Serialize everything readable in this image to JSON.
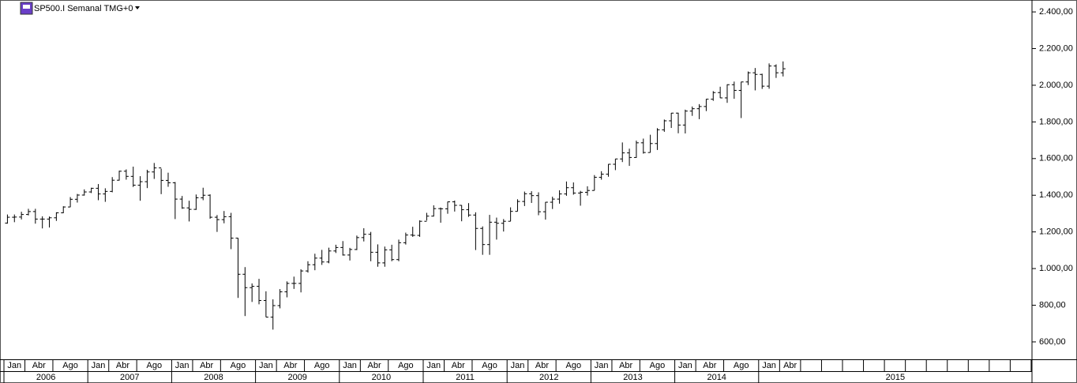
{
  "chart_data": {
    "type": "ohlc",
    "title": "SP500.I Semanal TMG+0",
    "color": "#000000",
    "categories": [
      "Jan",
      null,
      null,
      "Abr",
      null,
      null,
      null,
      "Ago",
      null,
      null,
      null,
      null,
      "Jan",
      null,
      null,
      "Abr",
      null,
      null,
      null,
      "Ago",
      null,
      null,
      null,
      null,
      "Jan",
      null,
      null,
      "Abr",
      null,
      null,
      null,
      "Ago",
      null,
      null,
      null,
      null,
      "Jan",
      null,
      null,
      "Abr",
      null,
      null,
      null,
      "Ago",
      null,
      null,
      null,
      null,
      "Jan",
      null,
      null,
      "Abr",
      null,
      null,
      null,
      "Ago",
      null,
      null,
      null,
      null,
      "Jan",
      null,
      null,
      "Abr",
      null,
      null,
      null,
      "Ago",
      null,
      null,
      null,
      null,
      "Jan",
      null,
      null,
      "Abr",
      null,
      null,
      null,
      "Ago",
      null,
      null,
      null,
      null,
      "Jan",
      null,
      null,
      "Abr",
      null,
      null,
      null,
      "Ago",
      null,
      null,
      null,
      null,
      "Jan",
      null,
      null,
      "Abr",
      null,
      null,
      null,
      "Ago",
      null,
      null,
      null,
      null,
      "Jan",
      null,
      null,
      "Abr"
    ],
    "years": [
      "2006",
      "2007",
      "2008",
      "2009",
      "2010",
      "2011",
      "2012",
      "2013",
      "2014",
      "2015"
    ],
    "open": [
      1248,
      1280,
      1281,
      1295,
      1311,
      1270,
      1270,
      1277,
      1304,
      1336,
      1378,
      1401,
      1418,
      1438,
      1407,
      1421,
      1482,
      1531,
      1503,
      1455,
      1474,
      1527,
      1549,
      1481,
      1468,
      1379,
      1331,
      1323,
      1386,
      1400,
      1280,
      1267,
      1283,
      1166,
      969,
      896,
      903,
      826,
      735,
      798,
      873,
      919,
      919,
      987,
      1021,
      1057,
      1036,
      1096,
      1115,
      1074,
      1104,
      1169,
      1187,
      1089,
      1031,
      1102,
      1049,
      1141,
      1183,
      1181,
      1258,
      1286,
      1327,
      1326,
      1364,
      1345,
      1321,
      1292,
      1219,
      1131,
      1253,
      1247,
      1258,
      1312,
      1366,
      1408,
      1398,
      1310,
      1362,
      1379,
      1407,
      1441,
      1412,
      1416,
      1426,
      1498,
      1515,
      1569,
      1598,
      1631,
      1606,
      1686,
      1633,
      1682,
      1757,
      1806,
      1848,
      1783,
      1859,
      1872,
      1884,
      1924,
      1960,
      1931,
      2003,
      1972,
      2018,
      2068,
      2059,
      1995,
      2105,
      2068
    ],
    "high": [
      1295,
      1295,
      1310,
      1326,
      1326,
      1285,
      1284,
      1307,
      1340,
      1390,
      1407,
      1432,
      1441,
      1461,
      1438,
      1499,
      1534,
      1541,
      1556,
      1504,
      1539,
      1576,
      1545,
      1523,
      1472,
      1396,
      1370,
      1404,
      1441,
      1405,
      1292,
      1314,
      1304,
      1167,
      1008,
      919,
      944,
      876,
      832,
      888,
      930,
      956,
      996,
      1040,
      1081,
      1102,
      1114,
      1130,
      1150,
      1113,
      1180,
      1220,
      1200,
      1132,
      1120,
      1130,
      1158,
      1196,
      1228,
      1263,
      1304,
      1345,
      1333,
      1365,
      1371,
      1346,
      1357,
      1307,
      1230,
      1293,
      1278,
      1270,
      1334,
      1378,
      1420,
      1422,
      1416,
      1363,
      1392,
      1427,
      1475,
      1470,
      1424,
      1449,
      1510,
      1531,
      1570,
      1598,
      1688,
      1654,
      1698,
      1709,
      1730,
      1766,
      1813,
      1849,
      1850,
      1867,
      1884,
      1897,
      1925,
      1968,
      1992,
      2005,
      2020,
      2019,
      2075,
      2094,
      2063,
      2119,
      2114,
      2130
    ],
    "low": [
      1245,
      1253,
      1268,
      1290,
      1245,
      1219,
      1224,
      1260,
      1302,
      1335,
      1360,
      1398,
      1412,
      1373,
      1364,
      1416,
      1480,
      1485,
      1445,
      1370,
      1439,
      1489,
      1406,
      1446,
      1270,
      1326,
      1257,
      1320,
      1373,
      1272,
      1200,
      1247,
      1106,
      840,
      741,
      818,
      805,
      735,
      667,
      783,
      843,
      889,
      870,
      978,
      991,
      1020,
      1029,
      1085,
      1071,
      1044,
      1101,
      1148,
      1040,
      1010,
      1010,
      1040,
      1040,
      1131,
      1173,
      1173,
      1262,
      1284,
      1250,
      1299,
      1311,
      1258,
      1282,
      1101,
      1075,
      1075,
      1158,
      1202,
      1258,
      1312,
      1341,
      1358,
      1291,
      1267,
      1325,
      1354,
      1397,
      1403,
      1343,
      1398,
      1426,
      1485,
      1501,
      1537,
      1581,
      1560,
      1604,
      1627,
      1633,
      1647,
      1746,
      1767,
      1738,
      1737,
      1833,
      1815,
      1859,
      1915,
      1930,
      1904,
      1926,
      1821,
      2001,
      1972,
      1980,
      1981,
      2040,
      2048
    ],
    "close": [
      1280,
      1281,
      1295,
      1311,
      1270,
      1270,
      1277,
      1304,
      1336,
      1378,
      1401,
      1418,
      1438,
      1407,
      1421,
      1482,
      1531,
      1503,
      1455,
      1474,
      1527,
      1549,
      1481,
      1468,
      1379,
      1331,
      1323,
      1386,
      1400,
      1280,
      1267,
      1283,
      1166,
      969,
      896,
      903,
      826,
      735,
      798,
      873,
      919,
      919,
      987,
      1021,
      1057,
      1036,
      1096,
      1115,
      1074,
      1104,
      1169,
      1187,
      1089,
      1031,
      1102,
      1049,
      1141,
      1183,
      1181,
      1258,
      1286,
      1327,
      1326,
      1364,
      1345,
      1321,
      1292,
      1219,
      1131,
      1253,
      1247,
      1258,
      1312,
      1366,
      1408,
      1398,
      1310,
      1362,
      1379,
      1407,
      1441,
      1412,
      1416,
      1426,
      1498,
      1515,
      1569,
      1598,
      1631,
      1606,
      1686,
      1633,
      1682,
      1757,
      1806,
      1848,
      1783,
      1859,
      1872,
      1884,
      1924,
      1960,
      1931,
      2003,
      1972,
      2018,
      2068,
      2059,
      1995,
      2105,
      2068,
      2090
    ],
    "ylim": [
      505,
      2465
    ],
    "yticks": [
      {
        "value": 600,
        "label": "600,00"
      },
      {
        "value": 800,
        "label": "800,00"
      },
      {
        "value": 1000,
        "label": "1.000,00"
      },
      {
        "value": 1200,
        "label": "1.200,00"
      },
      {
        "value": 1400,
        "label": "1.400,00"
      },
      {
        "value": 1600,
        "label": "1.600,00"
      },
      {
        "value": 1800,
        "label": "1.800,00"
      },
      {
        "value": 2000,
        "label": "2.000,00"
      },
      {
        "value": 2200,
        "label": "2.200,00"
      },
      {
        "value": 2400,
        "label": "2.400,00"
      }
    ]
  }
}
